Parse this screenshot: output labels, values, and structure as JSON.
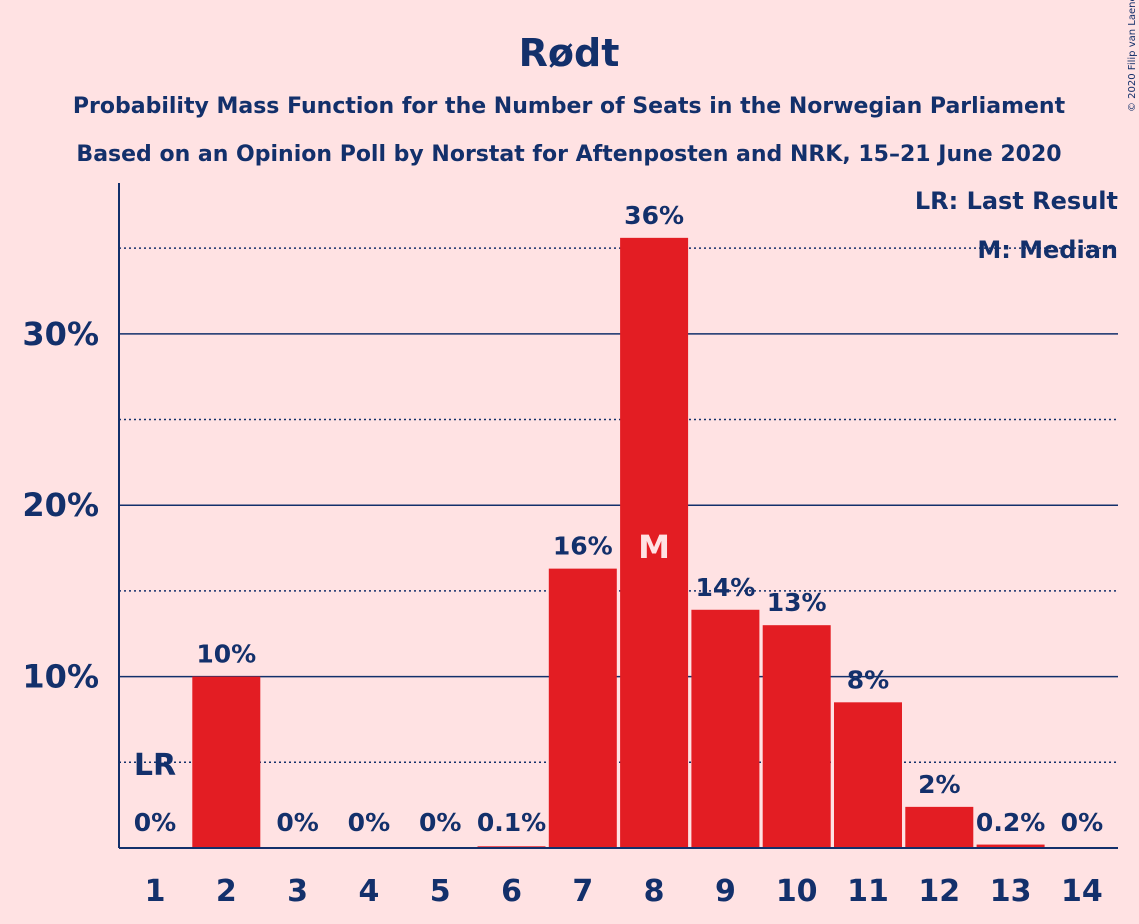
{
  "chart_data": {
    "type": "bar",
    "title": "Rødt",
    "subtitle_lines": [
      "Probability Mass Function for the Number of Seats in the Norwegian Parliament",
      "Based on an Opinion Poll by Norstat for Aftenposten and NRK, 15–21 June 2020"
    ],
    "categories": [
      "1",
      "2",
      "3",
      "4",
      "5",
      "6",
      "7",
      "8",
      "9",
      "10",
      "11",
      "12",
      "13",
      "14"
    ],
    "values": [
      0,
      10.0,
      0,
      0,
      0,
      0.1,
      16.3,
      35.6,
      13.9,
      13.0,
      8.5,
      2.4,
      0.2,
      0
    ],
    "value_labels": [
      "0%",
      "10%",
      "0%",
      "0%",
      "0%",
      "0.1%",
      "16%",
      "36%",
      "14%",
      "13%",
      "8%",
      "2%",
      "0.2%",
      "0%"
    ],
    "ylim": [
      0,
      38.8
    ],
    "yticks": [
      10,
      20,
      30
    ],
    "ytick_labels": [
      "10%",
      "20%",
      "30%"
    ],
    "major_gridlines": [
      10,
      20,
      30
    ],
    "minor_gridlines": [
      5,
      15,
      25,
      35
    ],
    "last_result_category": "1",
    "last_result_marker": "LR",
    "median_category": "8",
    "median_marker": "M",
    "legend": [
      "LR: Last Result",
      "M: Median"
    ],
    "legend_position": "top-right",
    "bar_color": "#E31D23",
    "text_color": "#13306B",
    "background_color": "#FFE2E3"
  },
  "copyright": "© 2020 Filip van Laenen"
}
